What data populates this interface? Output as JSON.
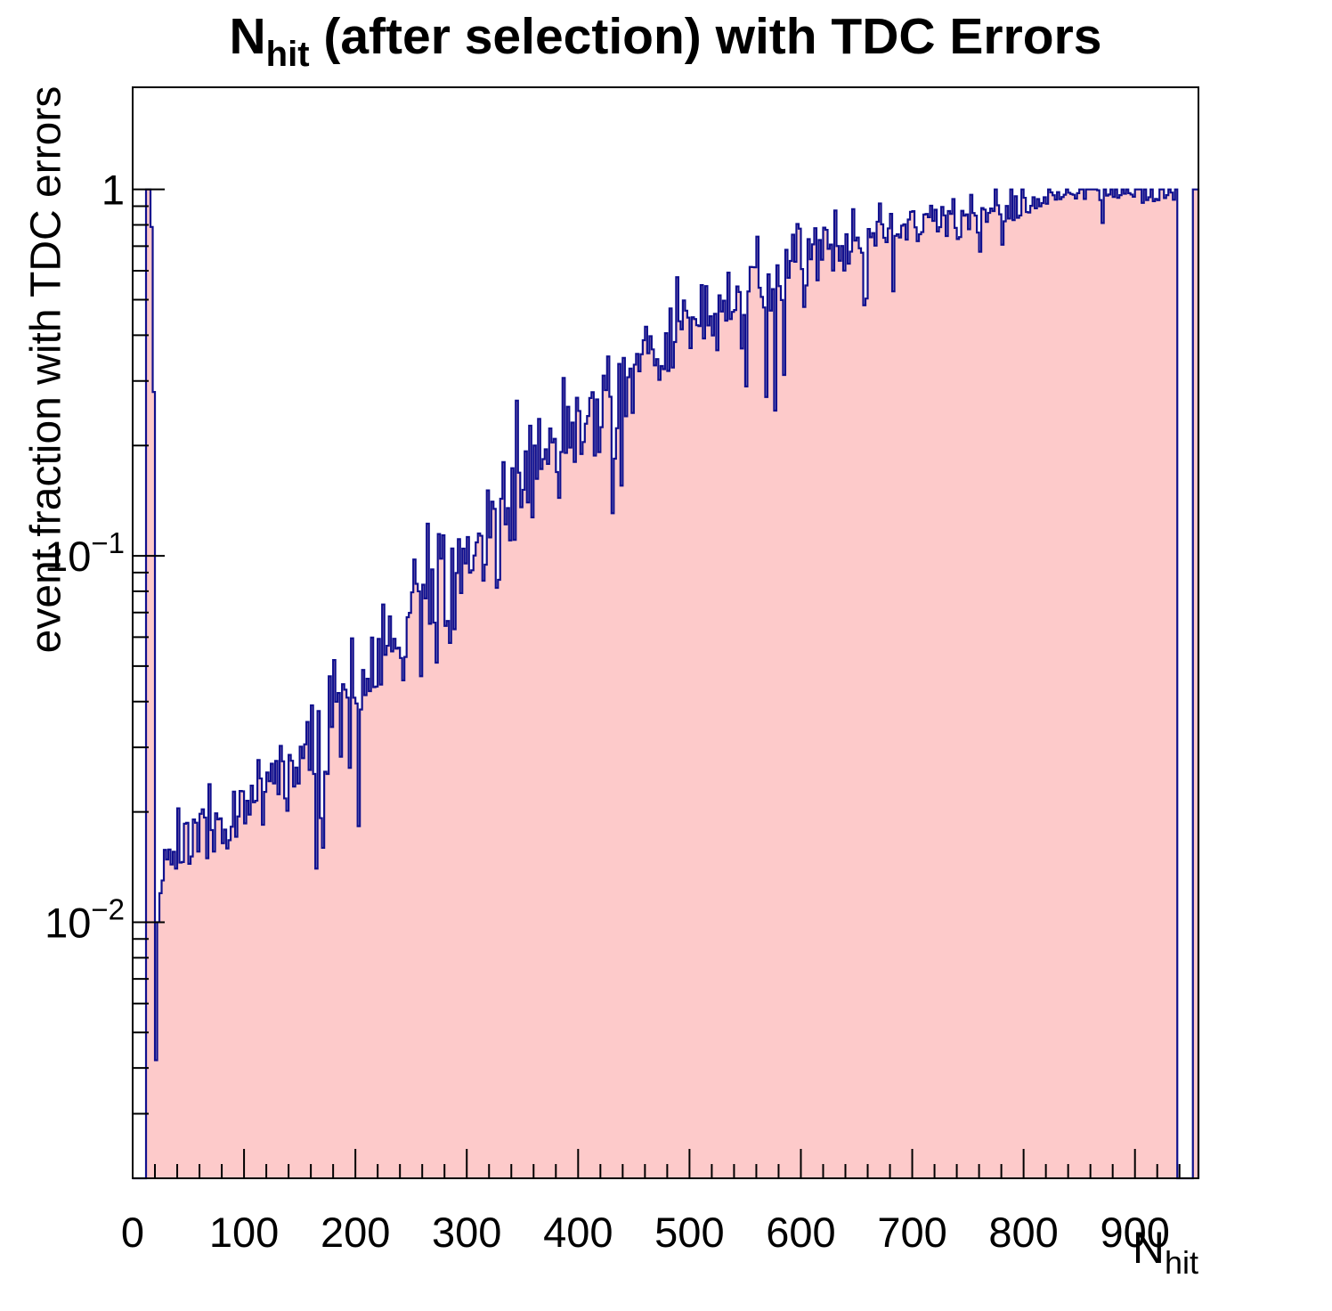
{
  "chart_data": {
    "type": "bar",
    "subtype": "root-step-histogram-log-y",
    "title": {
      "n": "N",
      "sub": "hit",
      "rest": " (after selection) with TDC Errors"
    },
    "colors": {
      "fill": "#fdcaca",
      "line": "#10108e",
      "frame": "#000000",
      "text": "#000000",
      "background": "#ffffff"
    },
    "axes": {
      "x": {
        "title_main": "N",
        "title_sub": "hit",
        "min": 0,
        "max": 957,
        "major_tick_step": 100,
        "minor_tick_step": 20,
        "tick_labels": [
          "0",
          "100",
          "200",
          "300",
          "400",
          "500",
          "600",
          "700",
          "800",
          "900"
        ]
      },
      "y": {
        "title": "event fraction with TDC errors",
        "scale": "log",
        "min": 0.002,
        "max": 1.9,
        "ticks": [
          {
            "value": 1,
            "base": "1",
            "exp": ""
          },
          {
            "value": 0.1,
            "base": "10",
            "exp": "−1"
          },
          {
            "value": 0.01,
            "base": "10",
            "exp": "−2"
          }
        ],
        "grid": false
      }
    },
    "legend": {
      "visible": false
    },
    "series": {
      "name": "event fraction with TDC errors vs Nhit",
      "bin_width": 2,
      "clip_max": 1.0,
      "head_bins": {
        "12": 1.0,
        "14": 1.0,
        "16": 0.79,
        "18": 0.28,
        "20": 0.0042,
        "22": 0.01,
        "24": 0.012,
        "26": 0.013
      },
      "zero_ranges": [
        [
          0,
          12
        ],
        [
          938,
          952
        ]
      ],
      "tail": {
        "from": 952,
        "value": 1.0
      },
      "trend": [
        [
          28,
          0.015
        ],
        [
          50,
          0.017
        ],
        [
          80,
          0.019
        ],
        [
          110,
          0.021
        ],
        [
          140,
          0.025
        ],
        [
          170,
          0.032
        ],
        [
          200,
          0.044
        ],
        [
          230,
          0.056
        ],
        [
          260,
          0.072
        ],
        [
          290,
          0.095
        ],
        [
          320,
          0.12
        ],
        [
          350,
          0.155
        ],
        [
          380,
          0.2
        ],
        [
          410,
          0.25
        ],
        [
          440,
          0.31
        ],
        [
          470,
          0.38
        ],
        [
          500,
          0.44
        ],
        [
          530,
          0.5
        ],
        [
          560,
          0.56
        ],
        [
          590,
          0.62
        ],
        [
          620,
          0.67
        ],
        [
          650,
          0.72
        ],
        [
          680,
          0.77
        ],
        [
          710,
          0.81
        ],
        [
          740,
          0.84
        ],
        [
          770,
          0.87
        ],
        [
          800,
          0.9
        ],
        [
          820,
          0.94
        ],
        [
          840,
          1.0
        ],
        [
          938,
          1.0
        ]
      ],
      "noise": {
        "seed": 20,
        "sigma_profile": [
          [
            60,
            0.05
          ],
          [
            150,
            0.065
          ],
          [
            250,
            0.1
          ],
          [
            450,
            0.11
          ],
          [
            600,
            0.075
          ],
          [
            700,
            0.05
          ],
          [
            800,
            0.035
          ],
          [
            840,
            0.03
          ],
          [
            938,
            0.022
          ]
        ],
        "spike_prob": 0.045,
        "clip_min": 0.0026
      }
    }
  }
}
